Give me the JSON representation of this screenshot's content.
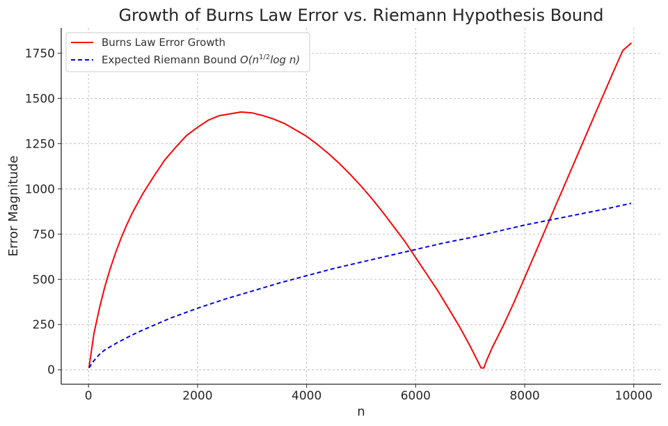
{
  "chart_data": {
    "type": "line",
    "title": "Growth of Burns Law Error vs. Riemann Hypothesis Bound",
    "xlabel": "n",
    "ylabel": "Error Magnitude",
    "xlim": [
      -500,
      10500
    ],
    "ylim": [
      -80,
      1890
    ],
    "xticks": [
      0,
      2000,
      4000,
      6000,
      8000,
      10000
    ],
    "yticks": [
      0,
      250,
      500,
      750,
      1000,
      1250,
      1500,
      1750
    ],
    "grid": true,
    "legend_position": "top-left",
    "series": [
      {
        "name": "Burns Law Error Growth",
        "color": "#ff0000",
        "style": "solid",
        "x": [
          10,
          100,
          200,
          300,
          400,
          500,
          600,
          700,
          800,
          900,
          1000,
          1200,
          1400,
          1600,
          1800,
          2000,
          2200,
          2400,
          2600,
          2800,
          3000,
          3200,
          3400,
          3600,
          3800,
          4000,
          4200,
          4400,
          4600,
          4800,
          5000,
          5200,
          5400,
          5600,
          5800,
          6000,
          6200,
          6400,
          6600,
          6800,
          7000,
          7100,
          7200,
          7250,
          7300,
          7400,
          7600,
          7800,
          8000,
          8200,
          8400,
          8600,
          8800,
          9000,
          9200,
          9400,
          9600,
          9800,
          9950
        ],
        "y": [
          15,
          200,
          340,
          460,
          560,
          650,
          730,
          800,
          865,
          920,
          975,
          1070,
          1160,
          1230,
          1295,
          1340,
          1380,
          1405,
          1415,
          1425,
          1420,
          1405,
          1385,
          1360,
          1325,
          1290,
          1245,
          1195,
          1140,
          1080,
          1015,
          945,
          870,
          790,
          710,
          620,
          530,
          440,
          340,
          240,
          130,
          70,
          10,
          10,
          50,
          120,
          240,
          370,
          510,
          650,
          790,
          930,
          1070,
          1210,
          1350,
          1490,
          1630,
          1765,
          1805
        ]
      },
      {
        "name": "Expected Riemann Bound ",
        "name_math": "O(n",
        "name_sup": "1/2",
        "name_math_end": "log n)",
        "color": "#0000ee",
        "style": "dashed",
        "x": [
          10,
          50,
          100,
          200,
          300,
          500,
          750,
          1000,
          1500,
          2000,
          2500,
          3000,
          3500,
          4000,
          4500,
          5000,
          5500,
          6000,
          6500,
          7000,
          7500,
          8000,
          8500,
          9000,
          9500,
          9950
        ],
        "y": [
          10,
          30,
          50,
          85,
          110,
          145,
          185,
          220,
          285,
          340,
          390,
          435,
          480,
          520,
          560,
          595,
          630,
          665,
          700,
          730,
          765,
          800,
          830,
          860,
          890,
          920
        ]
      }
    ]
  }
}
